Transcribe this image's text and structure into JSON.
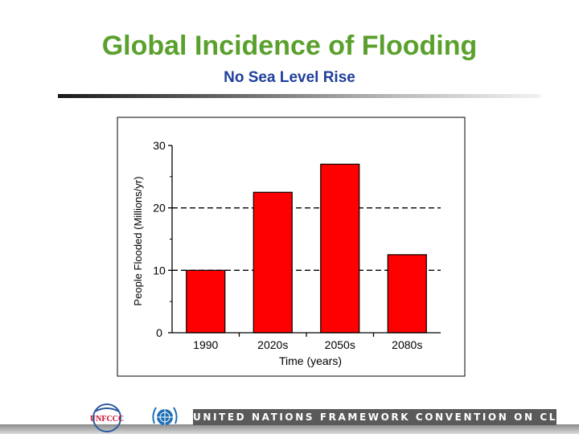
{
  "slide": {
    "title": "Global Incidence of Flooding",
    "subtitle": "No Sea Level Rise"
  },
  "chart_data": {
    "type": "bar",
    "title": "",
    "xlabel": "Time (years)",
    "ylabel": "People Flooded (Millions/yr)",
    "ylim": [
      0,
      30
    ],
    "yticks": [
      0,
      10,
      20,
      30
    ],
    "gridlines": [
      10,
      20
    ],
    "categories": [
      "1990",
      "2020s",
      "2050s",
      "2080s"
    ],
    "values": [
      10,
      22.5,
      27,
      12.5
    ],
    "bar_color": "#ff0000"
  },
  "footer": {
    "banner_text": "UNITED NATIONS FRAMEWORK CONVENTION ON CLIMATE CHANGE",
    "logo_text": "UNFCCC"
  }
}
